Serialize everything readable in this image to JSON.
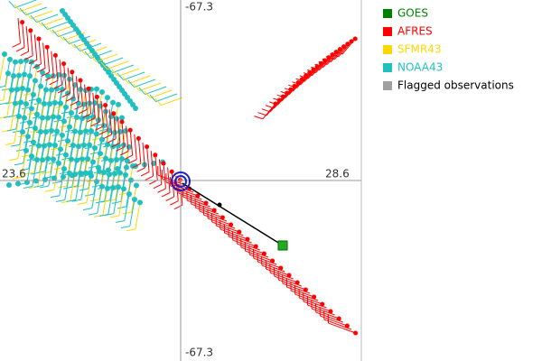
{
  "axis_labels": {
    "top": "-67.3",
    "bottom": "-67.3",
    "right": "28.6",
    "left": "23.6"
  },
  "legend": [
    {
      "label": "GOES",
      "color": "#008000"
    },
    {
      "label": "AFRES",
      "color": "#ff0000"
    },
    {
      "label": "SFMR43",
      "color": "#ffd700"
    },
    {
      "label": "NOAA43",
      "color": "#20c0c0"
    },
    {
      "label": "Flagged observations",
      "color": "#a0a0a0"
    }
  ]
}
